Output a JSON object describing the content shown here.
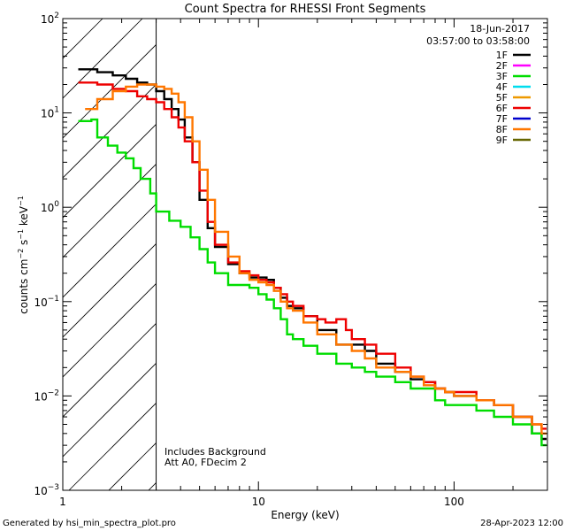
{
  "chart_data": {
    "type": "line",
    "title": "Count Spectra for RHESSI Front Segments",
    "xlabel": "Energy (keV)",
    "ylabel_parts": {
      "base": "counts cm",
      "exp1": "−2",
      "mid1": " s",
      "exp2": "−1",
      "mid2": " keV",
      "exp3": "−1"
    },
    "xscale": "log",
    "yscale": "log",
    "xlim": [
      1,
      300
    ],
    "ylim": [
      0.001,
      100
    ],
    "x_ticks": [
      {
        "value": 1,
        "label": "1"
      },
      {
        "value": 10,
        "label": "10"
      },
      {
        "value": 100,
        "label": "100"
      }
    ],
    "y_ticks": [
      {
        "value": 0.001,
        "base": "10",
        "exp": "−3"
      },
      {
        "value": 0.01,
        "base": "10",
        "exp": "−2"
      },
      {
        "value": 0.1,
        "base": "10",
        "exp": "−1"
      },
      {
        "value": 1,
        "base": "10",
        "exp": "0"
      },
      {
        "value": 10,
        "base": "10",
        "exp": "1"
      },
      {
        "value": 100,
        "base": "10",
        "exp": "2"
      }
    ],
    "date": "18-Jun-2017",
    "time_range": "03:57:00 to 03:58:00",
    "excluded_region": {
      "x_min": 1,
      "x_max": 3
    },
    "annotations": [
      "Includes Background",
      "Att A0, FDecim 2"
    ],
    "legend": [
      {
        "name": "1F",
        "color": "#000000"
      },
      {
        "name": "2F",
        "color": "#ff00ff"
      },
      {
        "name": "3F",
        "color": "#00dd00"
      },
      {
        "name": "4F",
        "color": "#00ddee"
      },
      {
        "name": "5F",
        "color": "#ee9900"
      },
      {
        "name": "6F",
        "color": "#ee0000"
      },
      {
        "name": "7F",
        "color": "#0000cc"
      },
      {
        "name": "8F",
        "color": "#ff7700"
      },
      {
        "name": "9F",
        "color": "#666600"
      }
    ],
    "series": [
      {
        "name": "1F",
        "color": "#000000",
        "points": [
          [
            1.2,
            29
          ],
          [
            1.5,
            27
          ],
          [
            1.8,
            25
          ],
          [
            2.1,
            23
          ],
          [
            2.4,
            21
          ],
          [
            2.7,
            20
          ],
          [
            3.0,
            17
          ],
          [
            3.3,
            14
          ],
          [
            3.6,
            11
          ],
          [
            3.9,
            8.5
          ],
          [
            4.2,
            5.5
          ],
          [
            4.6,
            3
          ],
          [
            5.0,
            1.2
          ],
          [
            5.5,
            0.6
          ],
          [
            6,
            0.38
          ],
          [
            7,
            0.25
          ],
          [
            8,
            0.2
          ],
          [
            9,
            0.18
          ],
          [
            10,
            0.18
          ],
          [
            11,
            0.17
          ],
          [
            12,
            0.14
          ],
          [
            13,
            0.11
          ],
          [
            14,
            0.09
          ],
          [
            15,
            0.085
          ],
          [
            17,
            0.07
          ],
          [
            20,
            0.05
          ],
          [
            25,
            0.035
          ],
          [
            30,
            0.035
          ],
          [
            35,
            0.03
          ],
          [
            40,
            0.022
          ],
          [
            50,
            0.018
          ],
          [
            60,
            0.015
          ],
          [
            70,
            0.014
          ],
          [
            80,
            0.012
          ],
          [
            90,
            0.011
          ],
          [
            100,
            0.01
          ],
          [
            130,
            0.009
          ],
          [
            160,
            0.008
          ],
          [
            200,
            0.006
          ],
          [
            250,
            0.004
          ],
          [
            280,
            0.0035
          ]
        ]
      },
      {
        "name": "3F",
        "color": "#00dd00",
        "points": [
          [
            1.2,
            8.2
          ],
          [
            1.4,
            8.5
          ],
          [
            1.5,
            5.5
          ],
          [
            1.7,
            4.5
          ],
          [
            1.9,
            3.8
          ],
          [
            2.1,
            3.3
          ],
          [
            2.3,
            2.6
          ],
          [
            2.5,
            2.0
          ],
          [
            2.8,
            1.4
          ],
          [
            3.0,
            0.9
          ],
          [
            3.5,
            0.72
          ],
          [
            4.0,
            0.62
          ],
          [
            4.5,
            0.48
          ],
          [
            5.0,
            0.36
          ],
          [
            5.5,
            0.26
          ],
          [
            6,
            0.2
          ],
          [
            7,
            0.15
          ],
          [
            8,
            0.15
          ],
          [
            9,
            0.14
          ],
          [
            10,
            0.12
          ],
          [
            11,
            0.105
          ],
          [
            12,
            0.085
          ],
          [
            13,
            0.065
          ],
          [
            14,
            0.045
          ],
          [
            15,
            0.04
          ],
          [
            17,
            0.034
          ],
          [
            20,
            0.028
          ],
          [
            25,
            0.022
          ],
          [
            30,
            0.02
          ],
          [
            35,
            0.018
          ],
          [
            40,
            0.016
          ],
          [
            50,
            0.014
          ],
          [
            60,
            0.012
          ],
          [
            70,
            0.012
          ],
          [
            80,
            0.009
          ],
          [
            90,
            0.008
          ],
          [
            100,
            0.008
          ],
          [
            130,
            0.007
          ],
          [
            160,
            0.006
          ],
          [
            200,
            0.005
          ],
          [
            250,
            0.004
          ],
          [
            280,
            0.003
          ]
        ]
      },
      {
        "name": "6F",
        "color": "#ee0000",
        "points": [
          [
            1.2,
            21
          ],
          [
            1.5,
            20
          ],
          [
            1.8,
            18
          ],
          [
            2.1,
            17
          ],
          [
            2.4,
            15
          ],
          [
            2.7,
            14
          ],
          [
            3.0,
            13
          ],
          [
            3.3,
            11
          ],
          [
            3.6,
            9
          ],
          [
            3.9,
            7
          ],
          [
            4.2,
            5
          ],
          [
            4.6,
            3
          ],
          [
            5.0,
            1.5
          ],
          [
            5.5,
            0.7
          ],
          [
            6,
            0.4
          ],
          [
            7,
            0.26
          ],
          [
            8,
            0.21
          ],
          [
            9,
            0.19
          ],
          [
            10,
            0.17
          ],
          [
            11,
            0.16
          ],
          [
            12,
            0.14
          ],
          [
            13,
            0.12
          ],
          [
            14,
            0.1
          ],
          [
            15,
            0.09
          ],
          [
            17,
            0.07
          ],
          [
            20,
            0.065
          ],
          [
            22,
            0.06
          ],
          [
            25,
            0.065
          ],
          [
            28,
            0.05
          ],
          [
            30,
            0.04
          ],
          [
            35,
            0.035
          ],
          [
            40,
            0.028
          ],
          [
            50,
            0.02
          ],
          [
            60,
            0.016
          ],
          [
            70,
            0.014
          ],
          [
            80,
            0.012
          ],
          [
            90,
            0.011
          ],
          [
            100,
            0.011
          ],
          [
            130,
            0.009
          ],
          [
            160,
            0.008
          ],
          [
            200,
            0.006
          ],
          [
            250,
            0.005
          ],
          [
            280,
            0.0045
          ]
        ]
      },
      {
        "name": "8F",
        "color": "#ff7700",
        "points": [
          [
            1.3,
            11
          ],
          [
            1.5,
            14
          ],
          [
            1.8,
            17
          ],
          [
            2.1,
            19
          ],
          [
            2.4,
            20
          ],
          [
            2.7,
            20
          ],
          [
            3.0,
            19
          ],
          [
            3.3,
            18
          ],
          [
            3.6,
            16
          ],
          [
            3.9,
            13
          ],
          [
            4.2,
            9
          ],
          [
            4.6,
            5
          ],
          [
            5.0,
            2.5
          ],
          [
            5.5,
            1.2
          ],
          [
            6,
            0.55
          ],
          [
            7,
            0.3
          ],
          [
            8,
            0.2
          ],
          [
            9,
            0.17
          ],
          [
            10,
            0.16
          ],
          [
            11,
            0.15
          ],
          [
            12,
            0.13
          ],
          [
            13,
            0.1
          ],
          [
            14,
            0.085
          ],
          [
            15,
            0.08
          ],
          [
            17,
            0.06
          ],
          [
            20,
            0.045
          ],
          [
            25,
            0.035
          ],
          [
            30,
            0.03
          ],
          [
            35,
            0.025
          ],
          [
            40,
            0.02
          ],
          [
            50,
            0.018
          ],
          [
            60,
            0.016
          ],
          [
            70,
            0.013
          ],
          [
            80,
            0.012
          ],
          [
            90,
            0.011
          ],
          [
            100,
            0.01
          ],
          [
            130,
            0.009
          ],
          [
            160,
            0.008
          ],
          [
            200,
            0.006
          ],
          [
            250,
            0.005
          ],
          [
            280,
            0.004
          ]
        ]
      }
    ]
  },
  "footer": {
    "generator": "Generated by hsi_min_spectra_plot.pro",
    "date": "28-Apr-2023 12:00"
  }
}
